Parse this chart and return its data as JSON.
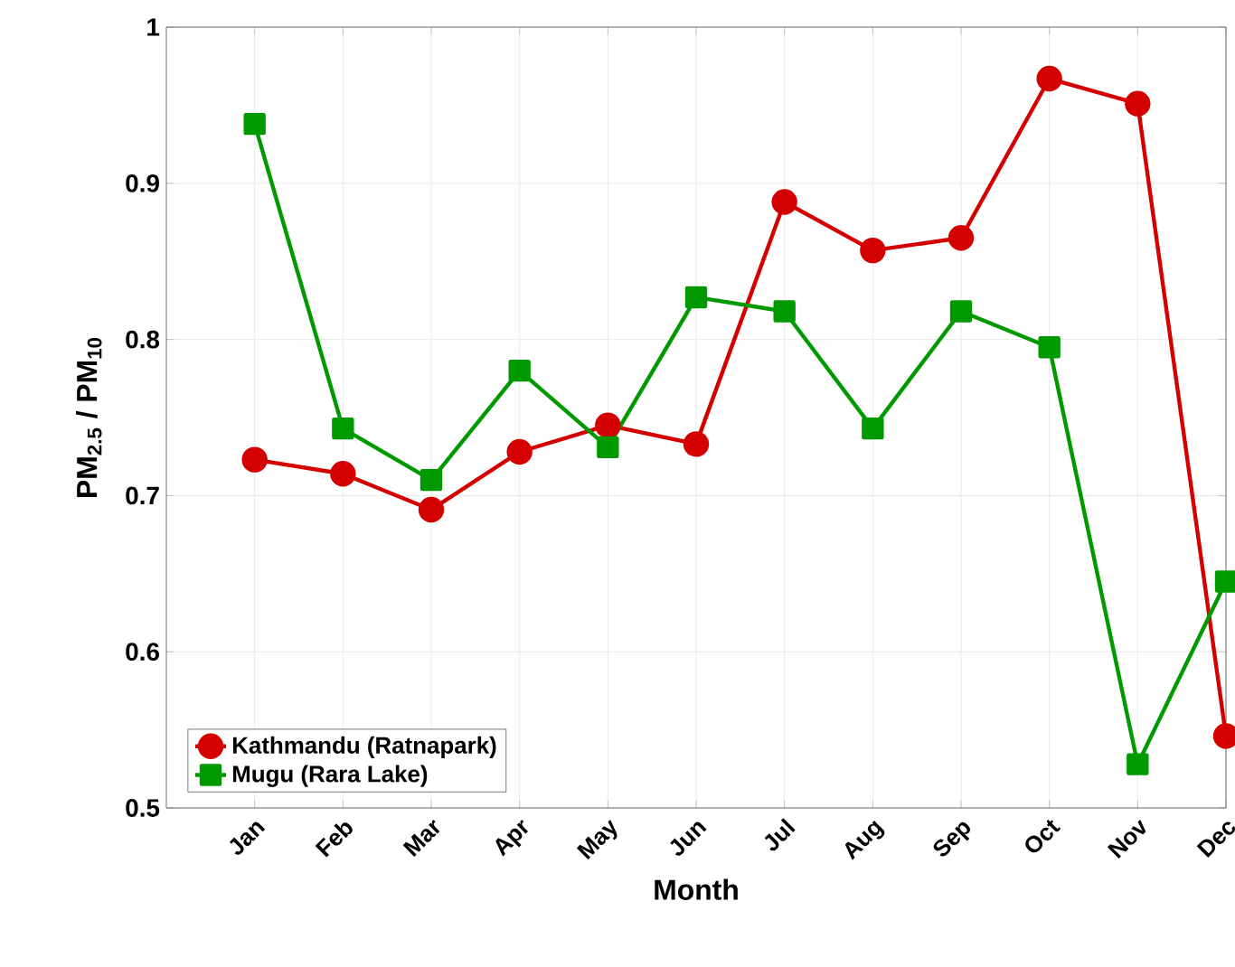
{
  "chart_data": {
    "type": "line",
    "xlabel": "Month",
    "ylabel": "PM$_{2.5}$ / PM$_{10}$",
    "categories": [
      "Jan",
      "Feb",
      "Mar",
      "Apr",
      "May",
      "Jun",
      "Jul",
      "Aug",
      "Sep",
      "Oct",
      "Nov",
      "Dec"
    ],
    "series": [
      {
        "name": "Kathmandu (Ratnapark)",
        "color": "#d40000",
        "marker": "circle",
        "values": [
          0.723,
          0.714,
          0.691,
          0.728,
          0.745,
          0.733,
          0.888,
          0.857,
          0.865,
          0.967,
          0.951,
          0.546
        ]
      },
      {
        "name": "Mugu (Rara Lake)",
        "color": "#009a00",
        "marker": "square",
        "values": [
          0.938,
          0.743,
          0.71,
          0.78,
          0.731,
          0.827,
          0.818,
          0.743,
          0.818,
          0.795,
          0.528,
          0.645
        ]
      }
    ],
    "ylim": [
      0.5,
      1
    ],
    "yticks": [
      0.5,
      0.6,
      0.7,
      0.8,
      0.9,
      1
    ],
    "grid": true,
    "legend": "bottom left",
    "line_style": "solid"
  }
}
